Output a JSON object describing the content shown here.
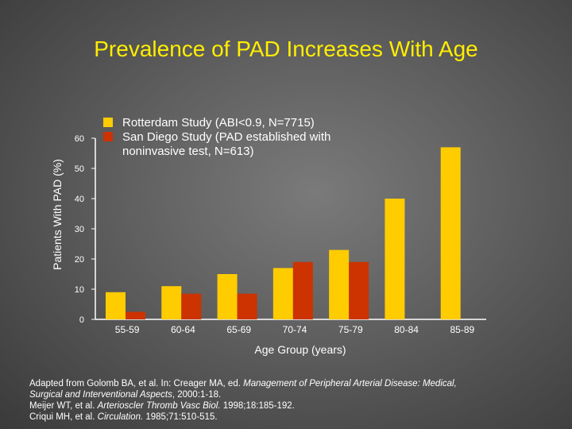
{
  "slide": {
    "title": "Prevalence of PAD Increases With Age"
  },
  "colors": {
    "series1": "#ffcc00",
    "series2": "#cc3300",
    "axis": "#ffffff",
    "title": "#ffee00"
  },
  "chart_data": {
    "type": "bar",
    "title": "Prevalence of PAD Increases With Age",
    "xlabel": "Age Group (years)",
    "ylabel": "Patients With PAD (%)",
    "ylim": [
      0,
      60
    ],
    "yticks": [
      0,
      10,
      20,
      30,
      40,
      50,
      60
    ],
    "categories": [
      "55-59",
      "60-64",
      "65-69",
      "70-74",
      "75-79",
      "80-84",
      "85-89"
    ],
    "grid": false,
    "legend_position": "top-left",
    "series": [
      {
        "name": "Rotterdam Study (ABI<0.9, N=7715)",
        "values": [
          9,
          11,
          15,
          17,
          23,
          40,
          57
        ]
      },
      {
        "name": "San Diego Study (PAD established with noninvasive test, N=613)",
        "values": [
          2.5,
          8.5,
          8.5,
          19,
          19,
          null,
          null
        ]
      }
    ]
  },
  "source": {
    "line1_prefix": "Adapted from Golomb BA, et al. In: Creager MA, ed. ",
    "line1_italic": "Management of Peripheral Arterial Disease: Medical,",
    "line2_italic": "Surgical and Interventional Aspects",
    "line2_suffix": ", 2000:1-18.",
    "line3_prefix": "Meijer WT, et al. ",
    "line3_italic": "Arterioscler Thromb Vasc Biol.",
    "line3_suffix": " 1998;18:185-192.",
    "line4_prefix": "Criqui MH, et al. ",
    "line4_italic": "Circulation.",
    "line4_suffix": " 1985;71:510-515."
  }
}
